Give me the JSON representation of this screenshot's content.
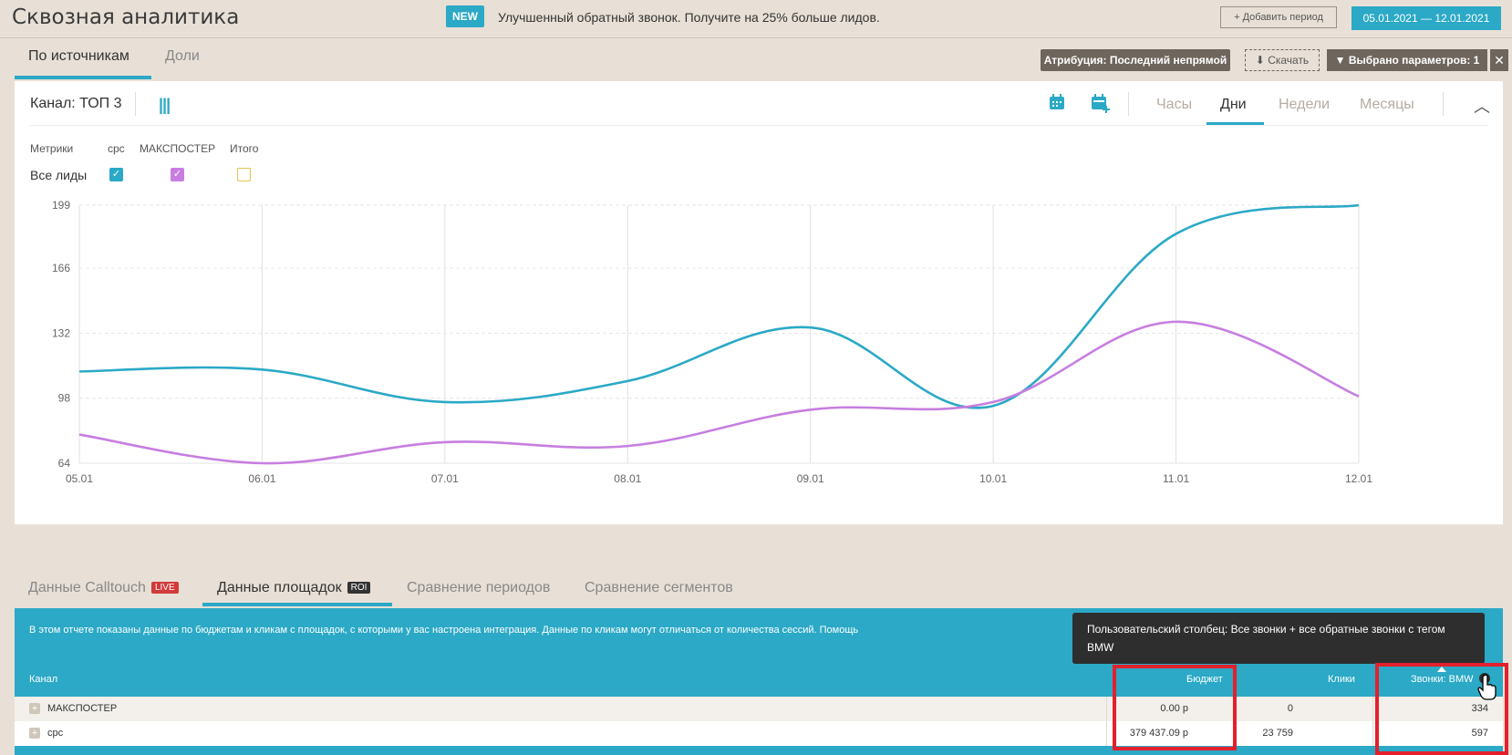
{
  "header": {
    "title": "Сквозная аналитика",
    "new_badge": "NEW",
    "promo": "Улучшенный обратный звонок. Получите на 25% больше лидов.",
    "add_period": "Добавить период",
    "date_range": "05.01.2021 — 12.01.2021"
  },
  "tabs_top": [
    {
      "label": "По источникам",
      "active": true
    },
    {
      "label": "Доли",
      "active": false
    }
  ],
  "toolbar": {
    "attribution": "Атрибуция: Последний непрямой",
    "download": "Скачать",
    "params": "Выбрано параметров: 1",
    "close": "✕"
  },
  "chart_panel": {
    "channel": "Канал: ТОП 3",
    "periods": [
      {
        "label": "Часы",
        "active": false
      },
      {
        "label": "Дни",
        "active": true
      },
      {
        "label": "Недели",
        "active": false
      },
      {
        "label": "Месяцы",
        "active": false
      }
    ],
    "legend": {
      "metrics_label": "Метрики",
      "row_label": "Все лиды",
      "series": [
        {
          "name": "cpc",
          "checked": true,
          "color": "#2ba9c6"
        },
        {
          "name": "МАКСПОСТЕР",
          "checked": true,
          "color": "#c77ee0"
        },
        {
          "name": "Итого",
          "checked": false,
          "color": "#e2c24a"
        }
      ]
    }
  },
  "chart_data": {
    "type": "line",
    "x": [
      "05.01",
      "06.01",
      "07.01",
      "08.01",
      "09.01",
      "10.01",
      "11.01",
      "12.01"
    ],
    "yticks": [
      64,
      98,
      132,
      166,
      199
    ],
    "ylim": [
      64,
      199
    ],
    "grid": true,
    "series": [
      {
        "name": "cpc",
        "color": "#2ba9c6",
        "values": [
          112,
          113,
          96,
          107,
          135,
          94,
          184,
          199
        ]
      },
      {
        "name": "МАКСПОСТЕР",
        "color": "#c77ee0",
        "values": [
          79,
          64,
          75,
          73,
          92,
          96,
          138,
          99
        ]
      }
    ]
  },
  "tabs_bottom": [
    {
      "label": "Данные Calltouch",
      "badge": "LIVE",
      "active": false
    },
    {
      "label": "Данные площадок",
      "badge": "ROI",
      "active": true
    },
    {
      "label": "Сравнение периодов",
      "badge": "",
      "active": false
    },
    {
      "label": "Сравнение сегментов",
      "badge": "",
      "active": false
    }
  ],
  "table": {
    "info": "В этом отчете показаны данные по бюджетам и кликам с площадок, с которыми у вас настроена интеграция. Данные по кликам могут отличаться от количества сессий.  Помощь",
    "tooltip": "Пользовательский столбец: Все звонки + все обратные звонки с тегом BMW",
    "columns": [
      "Канал",
      "Бюджет",
      "Клики",
      "Звонки: BMW"
    ],
    "rows": [
      {
        "channel": "МАКСПОСТЕР",
        "budget": "0.00 р",
        "clicks": "0",
        "calls": "334"
      },
      {
        "channel": "cpc",
        "budget": "379 437.09 р",
        "clicks": "23 759",
        "calls": "597"
      }
    ]
  }
}
